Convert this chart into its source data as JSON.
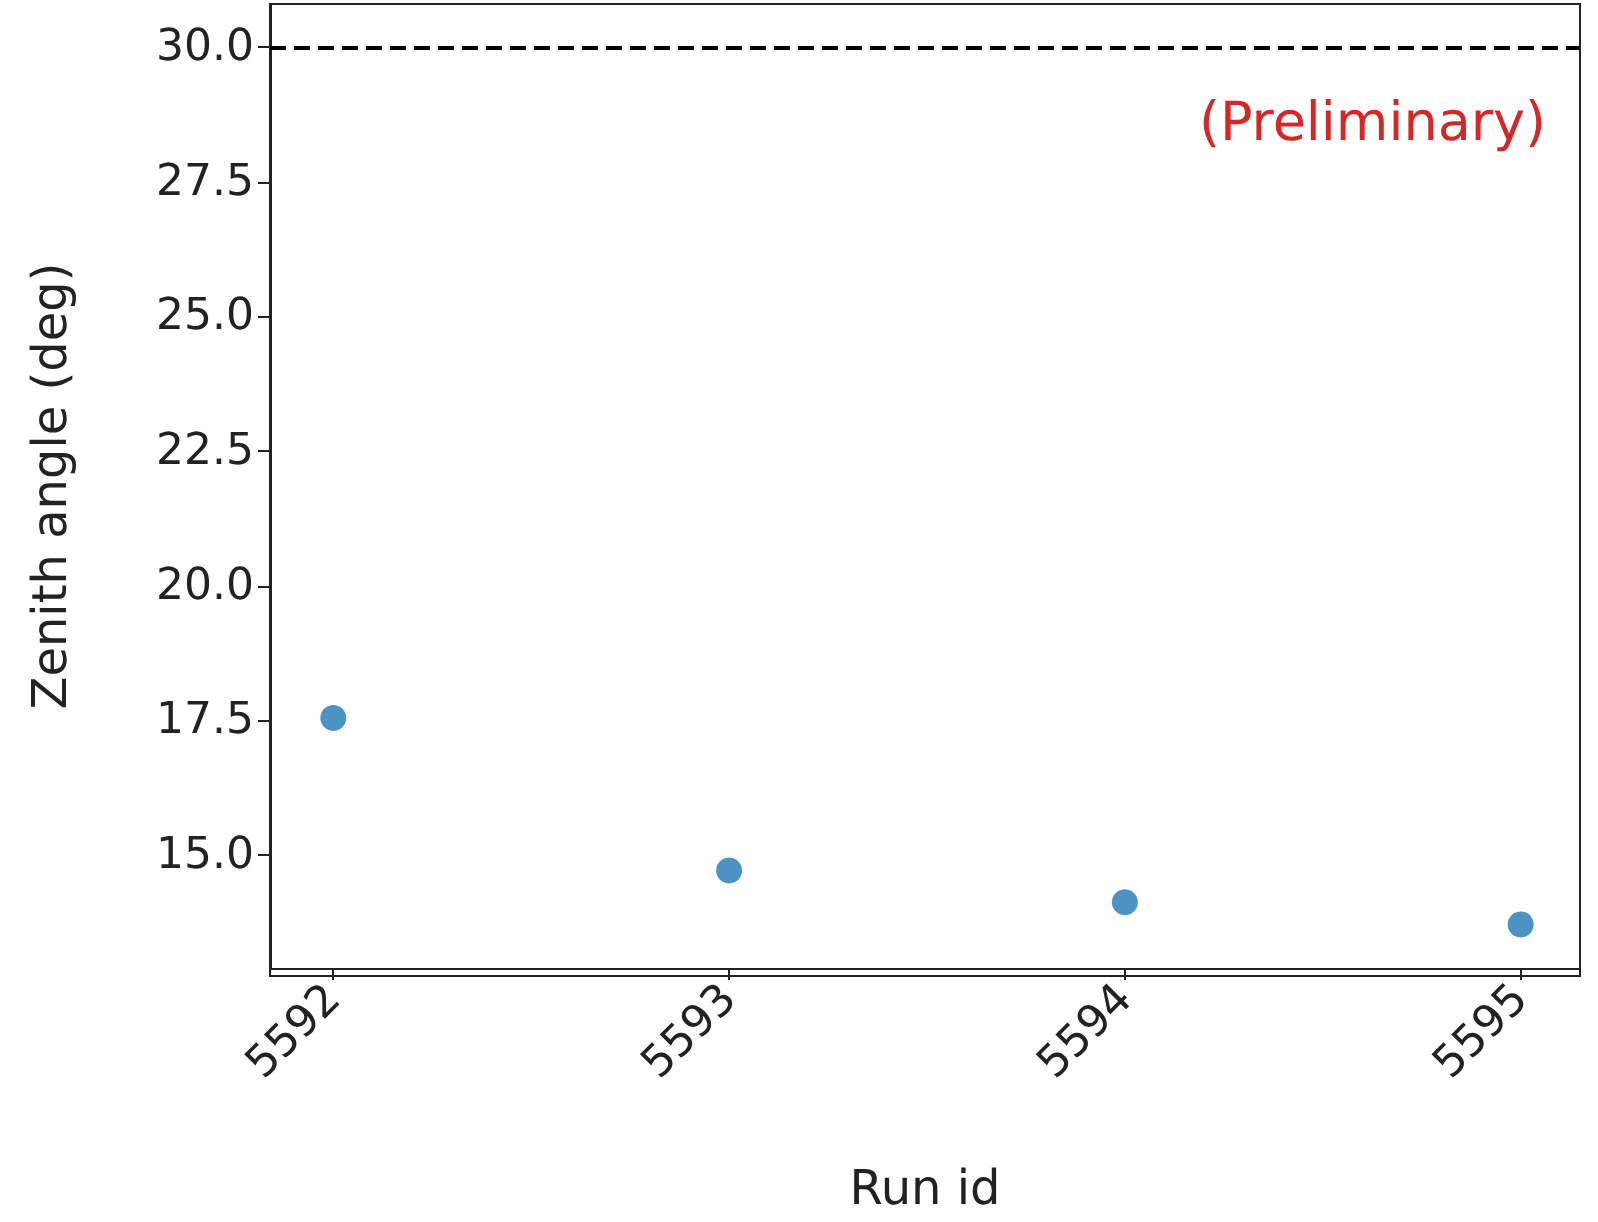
{
  "chart_data": {
    "type": "scatter",
    "xlabel": "Run id",
    "ylabel": "Zenith angle (deg)",
    "x": [
      5592,
      5593,
      5594,
      5595
    ],
    "values": [
      17.54,
      14.71,
      14.12,
      13.71
    ],
    "color": "#1f77b4",
    "marker": "circle",
    "xlim": [
      5591.84,
      5595.15
    ],
    "xticks": [
      5592,
      5593,
      5594,
      5595
    ],
    "ylim": [
      12.9,
      30.8
    ],
    "yticks": [
      {
        "value": 15,
        "label": "15.0"
      },
      {
        "value": 17.5,
        "label": "17.5"
      },
      {
        "value": 20,
        "label": "20.0"
      },
      {
        "value": 22.5,
        "label": "22.5"
      },
      {
        "value": 25,
        "label": "25.0"
      },
      {
        "value": 27.5,
        "label": "27.5"
      },
      {
        "value": 30,
        "label": "30.0"
      }
    ],
    "ref_lines": [
      {
        "axis": "y",
        "value": 30,
        "color": "#000000",
        "line_style": "dashed"
      }
    ],
    "annotations": [
      "(Preliminary)"
    ]
  }
}
